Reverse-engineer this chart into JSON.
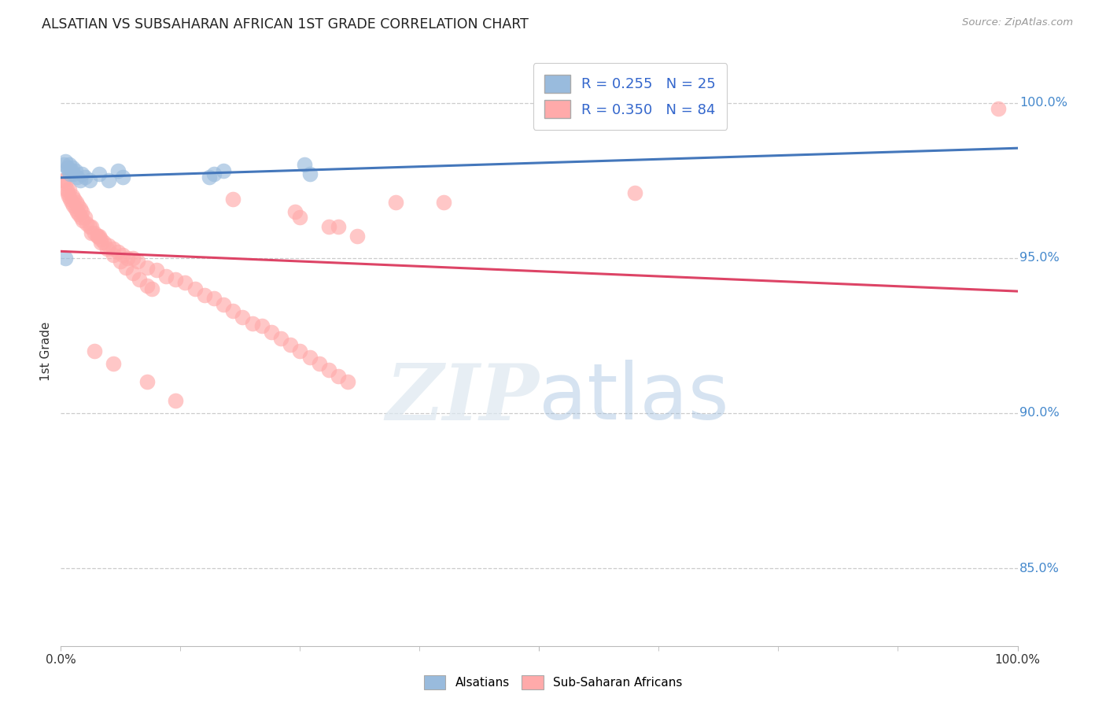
{
  "title": "ALSATIAN VS SUBSAHARAN AFRICAN 1ST GRADE CORRELATION CHART",
  "source": "Source: ZipAtlas.com",
  "ylabel": "1st Grade",
  "legend_blue_label": "R = 0.255   N = 25",
  "legend_pink_label": "R = 0.350   N = 84",
  "blue_color": "#99bbdd",
  "pink_color": "#ffaaaa",
  "blue_line_color": "#4477bb",
  "pink_line_color": "#dd4466",
  "background_color": "#ffffff",
  "gridline_color": "#cccccc",
  "right_label_color": "#4488cc",
  "gridline_values": [
    1.0,
    0.95,
    0.9,
    0.85
  ],
  "gridline_labels": [
    "100.0%",
    "95.0%",
    "90.0%",
    "85.0%"
  ],
  "ymin": 0.825,
  "ymax": 1.015,
  "xmin": 0.0,
  "xmax": 1.0,
  "als_x": [
    0.003,
    0.005,
    0.007,
    0.008,
    0.009,
    0.01,
    0.011,
    0.012,
    0.013,
    0.015,
    0.017,
    0.02,
    0.022,
    0.025,
    0.03,
    0.04,
    0.05,
    0.06,
    0.065,
    0.155,
    0.16,
    0.17,
    0.255,
    0.26,
    0.005
  ],
  "als_y": [
    0.98,
    0.981,
    0.979,
    0.978,
    0.98,
    0.977,
    0.978,
    0.979,
    0.977,
    0.978,
    0.976,
    0.975,
    0.977,
    0.976,
    0.975,
    0.977,
    0.975,
    0.978,
    0.976,
    0.976,
    0.977,
    0.978,
    0.98,
    0.977,
    0.95
  ],
  "sub_x": [
    0.003,
    0.005,
    0.006,
    0.007,
    0.008,
    0.009,
    0.01,
    0.011,
    0.012,
    0.013,
    0.014,
    0.015,
    0.016,
    0.017,
    0.018,
    0.019,
    0.02,
    0.021,
    0.022,
    0.023,
    0.025,
    0.027,
    0.03,
    0.032,
    0.035,
    0.038,
    0.04,
    0.042,
    0.045,
    0.05,
    0.055,
    0.06,
    0.065,
    0.07,
    0.075,
    0.08,
    0.09,
    0.1,
    0.11,
    0.12,
    0.13,
    0.14,
    0.15,
    0.16,
    0.17,
    0.18,
    0.19,
    0.2,
    0.21,
    0.22,
    0.23,
    0.24,
    0.25,
    0.26,
    0.27,
    0.28,
    0.29,
    0.3,
    0.032,
    0.038,
    0.042,
    0.048,
    0.055,
    0.062,
    0.068,
    0.075,
    0.082,
    0.09,
    0.095,
    0.35,
    0.4,
    0.6,
    0.25,
    0.28,
    0.31,
    0.98,
    0.003,
    0.18,
    0.245,
    0.29,
    0.035,
    0.055,
    0.09,
    0.12
  ],
  "sub_y": [
    0.975,
    0.974,
    0.972,
    0.971,
    0.97,
    0.972,
    0.969,
    0.968,
    0.97,
    0.967,
    0.969,
    0.966,
    0.968,
    0.965,
    0.967,
    0.964,
    0.966,
    0.963,
    0.965,
    0.962,
    0.963,
    0.961,
    0.96,
    0.958,
    0.958,
    0.957,
    0.957,
    0.956,
    0.955,
    0.954,
    0.953,
    0.952,
    0.951,
    0.95,
    0.95,
    0.949,
    0.947,
    0.946,
    0.944,
    0.943,
    0.942,
    0.94,
    0.938,
    0.937,
    0.935,
    0.933,
    0.931,
    0.929,
    0.928,
    0.926,
    0.924,
    0.922,
    0.92,
    0.918,
    0.916,
    0.914,
    0.912,
    0.91,
    0.96,
    0.957,
    0.955,
    0.953,
    0.951,
    0.949,
    0.947,
    0.945,
    0.943,
    0.941,
    0.94,
    0.968,
    0.968,
    0.971,
    0.963,
    0.96,
    0.957,
    0.998,
    0.975,
    0.969,
    0.965,
    0.96,
    0.92,
    0.916,
    0.91,
    0.904
  ]
}
